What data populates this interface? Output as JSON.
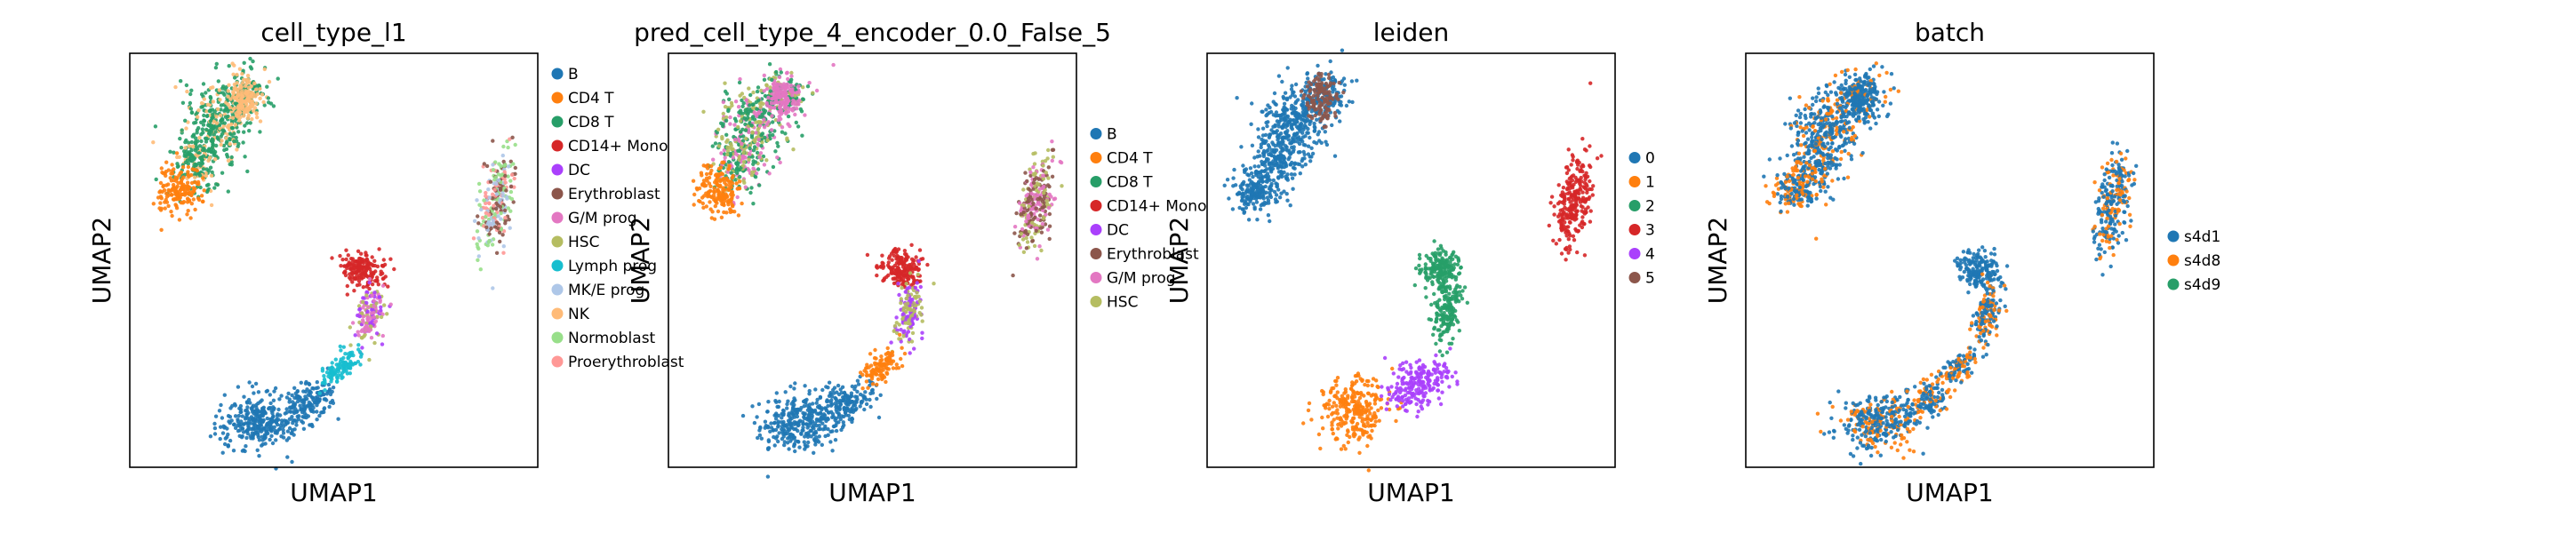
{
  "chart_data": [
    {
      "type": "scatter",
      "title": "cell_type_l1",
      "xlabel": "UMAP1",
      "ylabel": "UMAP2",
      "legend_position": "right",
      "series": [
        {
          "name": "B",
          "color": "#1f77b4"
        },
        {
          "name": "CD4 T",
          "color": "#ff7f0e"
        },
        {
          "name": "CD8 T",
          "color": "#279e68"
        },
        {
          "name": "CD14+ Mono",
          "color": "#d62728"
        },
        {
          "name": "DC",
          "color": "#aa40fc"
        },
        {
          "name": "Erythroblast",
          "color": "#8c564b"
        },
        {
          "name": "G/M prog",
          "color": "#e377c2"
        },
        {
          "name": "HSC",
          "color": "#b5bd61"
        },
        {
          "name": "Lymph prog",
          "color": "#17becf"
        },
        {
          "name": "MK/E prog",
          "color": "#aec7e8"
        },
        {
          "name": "NK",
          "color": "#ffbb78"
        },
        {
          "name": "Normoblast",
          "color": "#98df8a"
        },
        {
          "name": "Proerythroblast",
          "color": "#ff9896"
        }
      ]
    },
    {
      "type": "scatter",
      "title": "pred_cell_type_4_encoder_0.0_False_5",
      "xlabel": "UMAP1",
      "ylabel": "UMAP2",
      "legend_position": "right",
      "series": [
        {
          "name": "B",
          "color": "#1f77b4"
        },
        {
          "name": "CD4 T",
          "color": "#ff7f0e"
        },
        {
          "name": "CD8 T",
          "color": "#279e68"
        },
        {
          "name": "CD14+ Mono",
          "color": "#d62728"
        },
        {
          "name": "DC",
          "color": "#aa40fc"
        },
        {
          "name": "Erythroblast",
          "color": "#8c564b"
        },
        {
          "name": "G/M prog",
          "color": "#e377c2"
        },
        {
          "name": "HSC",
          "color": "#b5bd61"
        }
      ]
    },
    {
      "type": "scatter",
      "title": "leiden",
      "xlabel": "UMAP1",
      "ylabel": "UMAP2",
      "legend_position": "right",
      "series": [
        {
          "name": "0",
          "color": "#1f77b4"
        },
        {
          "name": "1",
          "color": "#ff7f0e"
        },
        {
          "name": "2",
          "color": "#279e68"
        },
        {
          "name": "3",
          "color": "#d62728"
        },
        {
          "name": "4",
          "color": "#aa40fc"
        },
        {
          "name": "5",
          "color": "#8c564b"
        }
      ]
    },
    {
      "type": "scatter",
      "title": "batch",
      "xlabel": "UMAP1",
      "ylabel": "UMAP2",
      "legend_position": "right",
      "series": [
        {
          "name": "s4d1",
          "color": "#1f77b4"
        },
        {
          "name": "s4d8",
          "color": "#ff7f0e"
        },
        {
          "name": "s4d9",
          "color": "#279e68"
        }
      ]
    }
  ]
}
